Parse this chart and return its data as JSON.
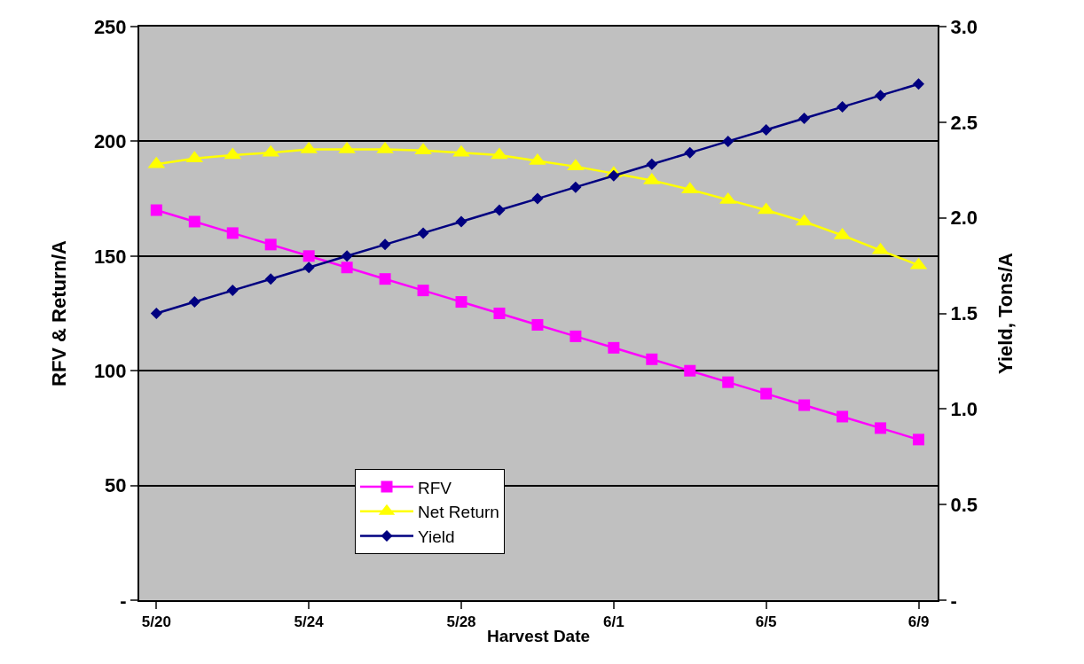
{
  "chart_data": {
    "type": "line",
    "xlabel": "Harvest Date",
    "ylabel": "RFV & Return/A",
    "y2label": "Yield, Tons/A",
    "categories": [
      "5/20",
      null,
      null,
      null,
      "5/24",
      null,
      null,
      null,
      "5/28",
      null,
      null,
      null,
      "6/1",
      null,
      null,
      null,
      "6/5",
      null,
      null,
      null,
      "6/9"
    ],
    "series": [
      {
        "name": "RFV",
        "color": "#ff00ff",
        "marker": "square",
        "values": [
          170,
          165,
          160,
          155,
          150,
          145,
          140,
          135,
          130,
          125,
          120,
          115,
          110,
          105,
          100,
          95,
          90,
          85,
          80,
          75,
          70
        ]
      },
      {
        "name": "Net Return",
        "color": "#ffff00",
        "marker": "triangle",
        "values": [
          190,
          192.5,
          194,
          195,
          196.5,
          196.5,
          196.5,
          196,
          195,
          194,
          191.5,
          189,
          186,
          183,
          179,
          174.5,
          170,
          165,
          159,
          152.5,
          146
        ]
      },
      {
        "name": "Yield",
        "color": "#000080",
        "marker": "diamond",
        "axis": "y2",
        "values": [
          1.5,
          1.56,
          1.62,
          1.68,
          1.74,
          1.8,
          1.86,
          1.92,
          1.98,
          2.04,
          2.1,
          2.16,
          2.22,
          2.28,
          2.34,
          2.4,
          2.46,
          2.52,
          2.58,
          2.64,
          2.7
        ]
      }
    ],
    "ylim": [
      0,
      250
    ],
    "yticks": [
      {
        "value": 0,
        "label": "-"
      },
      50,
      100,
      150,
      200,
      250
    ],
    "y2lim": [
      0,
      3.0
    ],
    "y2ticks": [
      {
        "value": 0,
        "label": "-"
      },
      0.5,
      {
        "value": 1.0,
        "label": "1.0"
      },
      1.5,
      {
        "value": 2.0,
        "label": "2.0"
      },
      2.5,
      {
        "value": 3.0,
        "label": "3.0"
      }
    ],
    "grid": "y",
    "legend": "bottom left",
    "line_style": "solid"
  }
}
